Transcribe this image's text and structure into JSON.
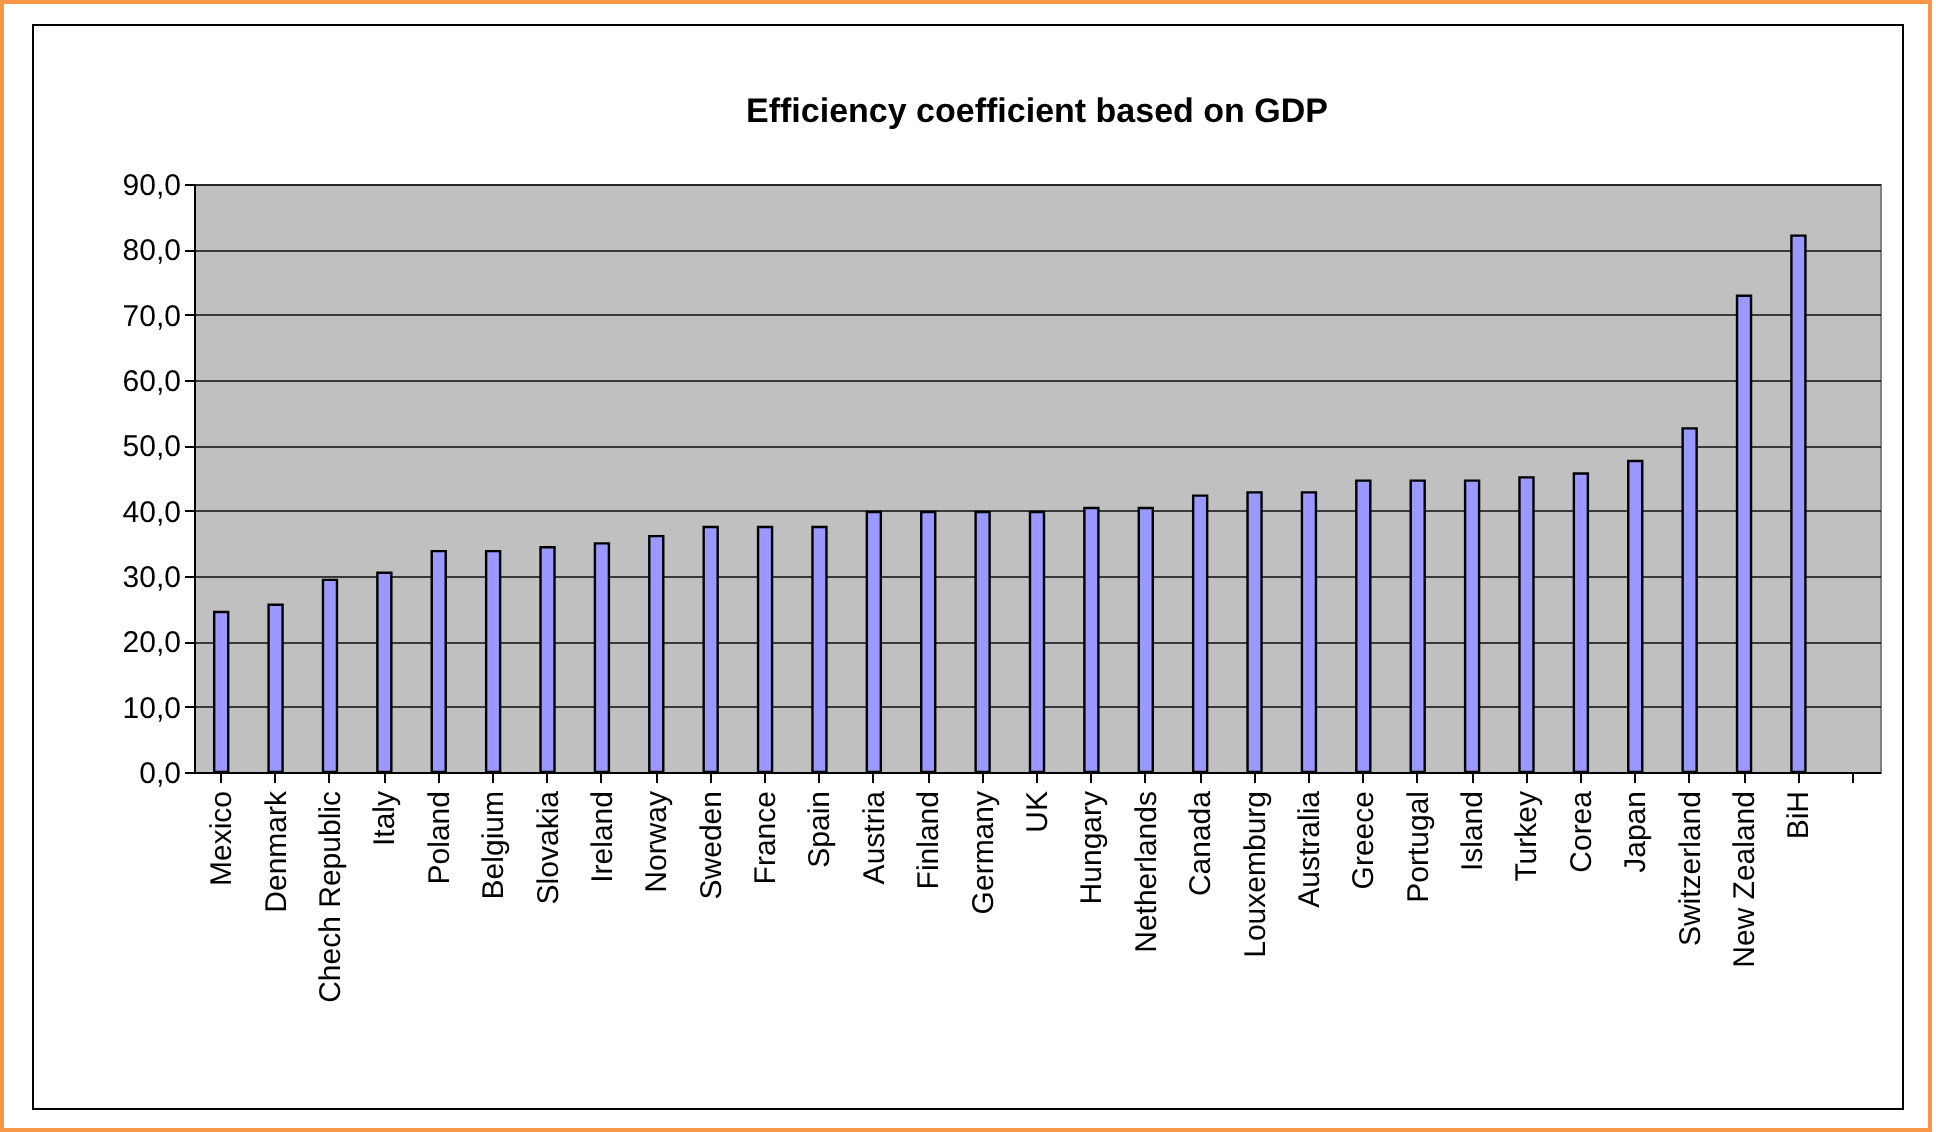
{
  "chart_data": {
    "type": "bar",
    "title": "Efficiency coefficient based on GDP",
    "categories": [
      "Mexico",
      "Denmark",
      "Chech Republic",
      "Italy",
      "Poland",
      "Belgium",
      "Slovakia",
      "Ireland",
      "Norway",
      "Sweden",
      "France",
      "Spain",
      "Austria",
      "Finland",
      "Germany",
      "UK",
      "Hungary",
      "Netherlands",
      "Canada",
      "Louxemburg",
      "Australia",
      "Greece",
      "Portugal",
      "Island",
      "Turkey",
      "Corea",
      "Japan",
      "Switzerland",
      "New Zealand",
      "BiH",
      null
    ],
    "values": [
      24.5,
      25.6,
      29.4,
      30.5,
      33.8,
      33.8,
      34.4,
      35.0,
      36.1,
      37.5,
      37.5,
      37.5,
      39.8,
      39.8,
      39.8,
      39.8,
      40.4,
      40.4,
      42.3,
      42.8,
      42.8,
      44.6,
      44.6,
      44.6,
      45.1,
      45.7,
      47.6,
      52.6,
      72.9,
      82.1,
      null
    ],
    "color": "#9999ff",
    "ylim": [
      0,
      90
    ],
    "yticks": [
      {
        "value": 0,
        "label": "0,0"
      },
      {
        "value": 10,
        "label": "10,0"
      },
      {
        "value": 20,
        "label": "20,0"
      },
      {
        "value": 30,
        "label": "30,0"
      },
      {
        "value": 40,
        "label": "40,0"
      },
      {
        "value": 50,
        "label": "50,0"
      },
      {
        "value": 60,
        "label": "60,0"
      },
      {
        "value": 70,
        "label": "70,0"
      },
      {
        "value": 80,
        "label": "80,0"
      },
      {
        "value": 90,
        "label": "90,0"
      }
    ],
    "grid": "y"
  }
}
